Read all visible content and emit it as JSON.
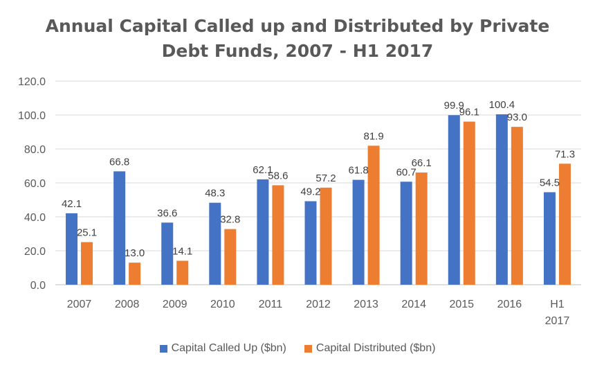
{
  "chart_data": {
    "type": "bar",
    "title": "Annual Capital Called up and Distributed by Private Debt Funds, 2007 - H1 2017",
    "title_lines": [
      "Annual Capital Called up and Distributed by Private",
      "Debt Funds, 2007 - H1 2017"
    ],
    "categories": [
      "2007",
      "2008",
      "2009",
      "2010",
      "2011",
      "2012",
      "2013",
      "2014",
      "2015",
      "2016",
      "H1 2017"
    ],
    "category_lines": [
      [
        "2007"
      ],
      [
        "2008"
      ],
      [
        "2009"
      ],
      [
        "2010"
      ],
      [
        "2011"
      ],
      [
        "2012"
      ],
      [
        "2013"
      ],
      [
        "2014"
      ],
      [
        "2015"
      ],
      [
        "2016"
      ],
      [
        "H1",
        "2017"
      ]
    ],
    "series": [
      {
        "name": "Capital Called Up ($bn)",
        "color": "#4472C4",
        "values": [
          42.1,
          66.8,
          36.6,
          48.3,
          62.1,
          49.2,
          61.8,
          60.7,
          99.9,
          100.4,
          54.5
        ]
      },
      {
        "name": "Capital Distributed ($bn)",
        "color": "#ED7D31",
        "values": [
          25.1,
          13.0,
          14.1,
          32.8,
          58.6,
          57.2,
          81.9,
          66.1,
          96.1,
          93.0,
          71.3
        ]
      }
    ],
    "ylim": [
      0,
      120
    ],
    "yticks": [
      "0.0",
      "20.0",
      "40.0",
      "60.0",
      "80.0",
      "100.0",
      "120.0"
    ],
    "xlabel": "",
    "ylabel": "",
    "grid": true,
    "legend_position": "bottom",
    "data_labels": true
  }
}
